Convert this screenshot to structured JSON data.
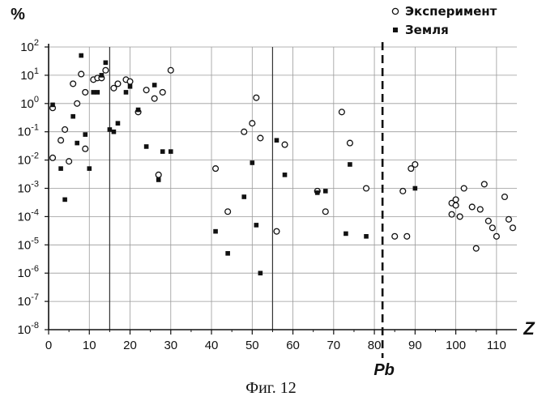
{
  "caption": "Фиг. 12",
  "chart_data": {
    "type": "scatter",
    "ylabel": "%",
    "xlabel": "Z",
    "yscale": "log",
    "xlim": [
      0,
      115
    ],
    "ylim": [
      1e-08,
      100
    ],
    "x_ticks": [
      0,
      10,
      20,
      30,
      40,
      50,
      60,
      70,
      80,
      90,
      100,
      110
    ],
    "y_ticks": [
      {
        "base": "10",
        "exp": "2"
      },
      {
        "base": "10",
        "exp": "1"
      },
      {
        "base": "10",
        "exp": "0"
      },
      {
        "base": "10",
        "exp": "-1"
      },
      {
        "base": "10",
        "exp": "-2"
      },
      {
        "base": "10",
        "exp": "-3"
      },
      {
        "base": "10",
        "exp": "-4"
      },
      {
        "base": "10",
        "exp": "-5"
      },
      {
        "base": "10",
        "exp": "-6"
      },
      {
        "base": "10",
        "exp": "-7"
      },
      {
        "base": "10",
        "exp": "-8"
      }
    ],
    "grid": true,
    "legend_position": "top-right",
    "reference_line": {
      "x": 82,
      "label": "Pb",
      "style": "dashed"
    },
    "series": [
      {
        "name": "Эксперимент",
        "marker": "open-circle",
        "points": [
          [
            1,
            0.7
          ],
          [
            1,
            0.012
          ],
          [
            3,
            0.05
          ],
          [
            4,
            0.12
          ],
          [
            5,
            0.009
          ],
          [
            6,
            5
          ],
          [
            7,
            1
          ],
          [
            8,
            11
          ],
          [
            9,
            0.025
          ],
          [
            9,
            2.5
          ],
          [
            11,
            7
          ],
          [
            12,
            8
          ],
          [
            13,
            8
          ],
          [
            14,
            15
          ],
          [
            16,
            3.5
          ],
          [
            17,
            5
          ],
          [
            19,
            7
          ],
          [
            20,
            6
          ],
          [
            22,
            0.5
          ],
          [
            24,
            3
          ],
          [
            26,
            1.5
          ],
          [
            27,
            0.003
          ],
          [
            28,
            2.5
          ],
          [
            30,
            15
          ],
          [
            41,
            0.005
          ],
          [
            44,
            0.00015
          ],
          [
            48,
            0.1
          ],
          [
            50,
            0.2
          ],
          [
            51,
            1.6
          ],
          [
            52,
            0.06
          ],
          [
            56,
            3e-05
          ],
          [
            58,
            0.035
          ],
          [
            66,
            0.0008
          ],
          [
            68,
            0.00015
          ],
          [
            72,
            0.5
          ],
          [
            74,
            0.04
          ],
          [
            78,
            0.001
          ],
          [
            85,
            2e-05
          ],
          [
            88,
            2e-05
          ],
          [
            87,
            0.0008
          ],
          [
            89,
            0.005
          ],
          [
            90,
            0.007
          ],
          [
            99,
            0.0003
          ],
          [
            99,
            0.00012
          ],
          [
            100,
            0.0004
          ],
          [
            100,
            0.00025
          ],
          [
            101,
            0.0001
          ],
          [
            102,
            0.001
          ],
          [
            104,
            0.00022
          ],
          [
            105,
            7.5e-06
          ],
          [
            106,
            0.00018
          ],
          [
            107,
            0.0014
          ],
          [
            108,
            7e-05
          ],
          [
            109,
            4e-05
          ],
          [
            110,
            2e-05
          ],
          [
            112,
            0.0005
          ],
          [
            113,
            8e-05
          ],
          [
            114,
            4e-05
          ]
        ]
      },
      {
        "name": "Земля",
        "marker": "filled-square",
        "points": [
          [
            1,
            0.9
          ],
          [
            3,
            0.005
          ],
          [
            4,
            0.0004
          ],
          [
            6,
            0.35
          ],
          [
            7,
            0.04
          ],
          [
            8,
            50
          ],
          [
            9,
            0.08
          ],
          [
            10,
            0.005
          ],
          [
            11,
            2.5
          ],
          [
            12,
            2.5
          ],
          [
            13,
            10
          ],
          [
            14,
            28
          ],
          [
            15,
            0.12
          ],
          [
            16,
            0.1
          ],
          [
            17,
            0.2
          ],
          [
            19,
            2.5
          ],
          [
            20,
            4
          ],
          [
            22,
            0.6
          ],
          [
            24,
            0.03
          ],
          [
            26,
            4.5
          ],
          [
            27,
            0.002
          ],
          [
            28,
            0.02
          ],
          [
            30,
            0.02
          ],
          [
            41,
            3e-05
          ],
          [
            44,
            5e-06
          ],
          [
            48,
            0.0005
          ],
          [
            50,
            0.008
          ],
          [
            51,
            5e-05
          ],
          [
            52,
            1e-06
          ],
          [
            56,
            0.05
          ],
          [
            58,
            0.003
          ],
          [
            66,
            0.0007
          ],
          [
            68,
            0.0008
          ],
          [
            73,
            2.5e-05
          ],
          [
            74,
            0.007
          ],
          [
            78,
            2e-05
          ],
          [
            90,
            0.001
          ]
        ]
      }
    ]
  }
}
